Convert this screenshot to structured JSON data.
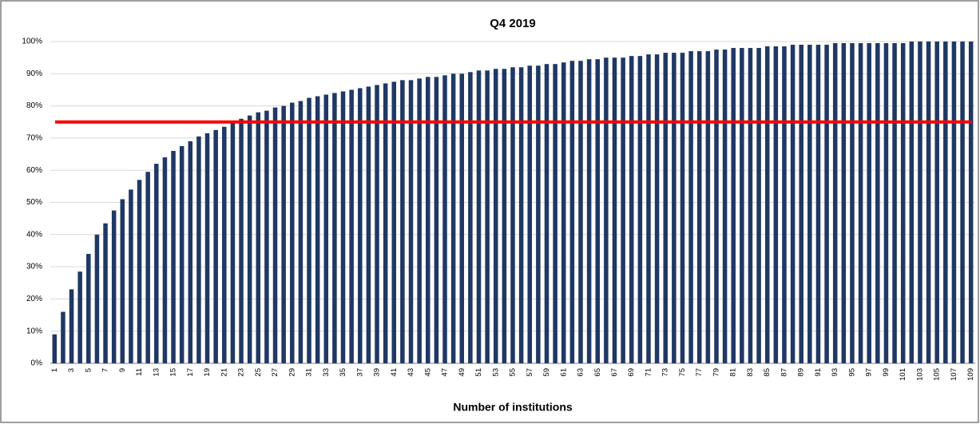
{
  "chart_data": {
    "type": "bar",
    "title": "Q4 2019",
    "x_label": "Number of institutions",
    "categories": [
      1,
      null,
      3,
      null,
      5,
      null,
      7,
      null,
      9,
      null,
      11,
      null,
      13,
      null,
      15,
      null,
      17,
      null,
      19,
      null,
      21,
      null,
      23,
      null,
      25,
      null,
      27,
      null,
      29,
      null,
      31,
      null,
      33,
      null,
      35,
      null,
      37,
      null,
      39,
      null,
      41,
      null,
      43,
      null,
      45,
      null,
      47,
      null,
      49,
      null,
      51,
      null,
      53,
      null,
      55,
      null,
      57,
      null,
      59,
      null,
      61,
      null,
      63,
      null,
      65,
      null,
      67,
      null,
      69,
      null,
      71,
      null,
      73,
      null,
      75,
      null,
      77,
      null,
      79,
      null,
      81,
      null,
      83,
      null,
      85,
      null,
      87,
      null,
      89,
      null,
      91,
      null,
      93,
      null,
      95,
      null,
      97,
      null,
      99,
      null,
      101,
      null,
      103,
      null,
      105,
      null,
      107,
      null,
      109
    ],
    "values": [
      9,
      16,
      23,
      28.5,
      34,
      40,
      43.5,
      47.5,
      51,
      54,
      57,
      59.5,
      62,
      64,
      66,
      67.5,
      69,
      70.5,
      71.5,
      72.5,
      73.5,
      75,
      76,
      77,
      78,
      78.5,
      79.5,
      80,
      81,
      81.5,
      82.5,
      83,
      83.5,
      84,
      84.5,
      85,
      85.5,
      86,
      86.5,
      87,
      87.5,
      88,
      88,
      88.5,
      89,
      89,
      89.5,
      90,
      90,
      90.5,
      91,
      91,
      91.5,
      91.5,
      92,
      92,
      92.5,
      92.5,
      93,
      93,
      93.5,
      94,
      94,
      94.5,
      94.5,
      95,
      95,
      95,
      95.5,
      95.5,
      96,
      96,
      96.5,
      96.5,
      96.5,
      97,
      97,
      97,
      97.5,
      97.5,
      98,
      98,
      98,
      98,
      98.5,
      98.5,
      98.5,
      99,
      99,
      99,
      99,
      99,
      99.5,
      99.5,
      99.5,
      99.5,
      99.5,
      99.5,
      99.5,
      99.5,
      99.5,
      100,
      100,
      100,
      100,
      100,
      100,
      100,
      100
    ],
    "color": "#1f3864",
    "reference_line": 75,
    "reference_line_color": "#ff0000",
    "ylim": [
      0,
      100
    ],
    "yticks": [
      {
        "value": 0,
        "label": "0%"
      },
      {
        "value": 10,
        "label": "10%"
      },
      {
        "value": 20,
        "label": "20%"
      },
      {
        "value": 30,
        "label": "30%"
      },
      {
        "value": 40,
        "label": "40%"
      },
      {
        "value": 50,
        "label": "50%"
      },
      {
        "value": 60,
        "label": "60%"
      },
      {
        "value": 70,
        "label": "70%"
      },
      {
        "value": 80,
        "label": "80%"
      },
      {
        "value": 90,
        "label": "90%"
      },
      {
        "value": 100,
        "label": "100%"
      }
    ],
    "grid": true
  }
}
